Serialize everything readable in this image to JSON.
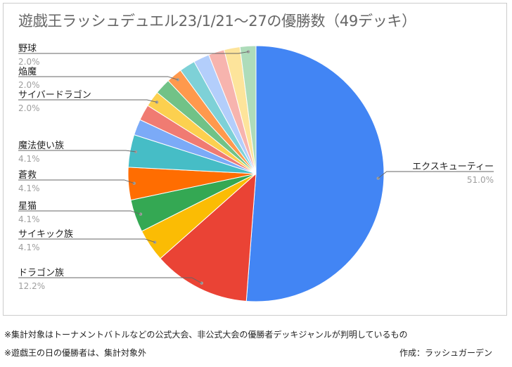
{
  "chart_data": {
    "type": "pie",
    "title": "遊戯王ラッシュデュエル23/1/21～27の優勝数（49デッキ）",
    "slices": [
      {
        "name": "エクスキューティー",
        "value": 51.0,
        "label": "51.0%",
        "color": "#4285f4",
        "labeled": true
      },
      {
        "name": "ドラゴン族",
        "value": 12.2,
        "label": "12.2%",
        "color": "#ea4335",
        "labeled": true
      },
      {
        "name": "サイキック族",
        "value": 4.1,
        "label": "4.1%",
        "color": "#fbbc04",
        "labeled": true
      },
      {
        "name": "星猫",
        "value": 4.1,
        "label": "4.1%",
        "color": "#34a853",
        "labeled": true
      },
      {
        "name": "蒼救",
        "value": 4.1,
        "label": "4.1%",
        "color": "#ff6d01",
        "labeled": true
      },
      {
        "name": "魔法使い族",
        "value": 4.1,
        "label": "4.1%",
        "color": "#46bdc6",
        "labeled": true
      },
      {
        "name": "",
        "value": 2.0,
        "label": "",
        "color": "#7baaf7",
        "labeled": false
      },
      {
        "name": "",
        "value": 2.0,
        "label": "",
        "color": "#f07b72",
        "labeled": false
      },
      {
        "name": "サイバードラゴン",
        "value": 2.0,
        "label": "2.0%",
        "color": "#fcd04f",
        "labeled": true
      },
      {
        "name": "",
        "value": 2.0,
        "label": "",
        "color": "#71c287",
        "labeled": false
      },
      {
        "name": "焔魔",
        "value": 2.0,
        "label": "2.0%",
        "color": "#ff994d",
        "labeled": true
      },
      {
        "name": "",
        "value": 2.0,
        "label": "",
        "color": "#7ed1d7",
        "labeled": false
      },
      {
        "name": "",
        "value": 2.0,
        "label": "",
        "color": "#b3cefb",
        "labeled": false
      },
      {
        "name": "",
        "value": 2.0,
        "label": "",
        "color": "#f7b4ae",
        "labeled": false
      },
      {
        "name": "",
        "value": 2.0,
        "label": "",
        "color": "#fde49b",
        "labeled": false
      },
      {
        "name": "野球",
        "value": 2.0,
        "label": "2.0%",
        "color": "#aedcba",
        "labeled": true
      }
    ]
  },
  "footnotes": {
    "line1": "※集計対象はトーナメントバトルなどの公式大会、非公式大会の優勝者デッキジャンルが判明しているもの",
    "line2": "※遊戯王の日の優勝者は、集計対象外",
    "author": "作成：ラッシュガーデン"
  }
}
